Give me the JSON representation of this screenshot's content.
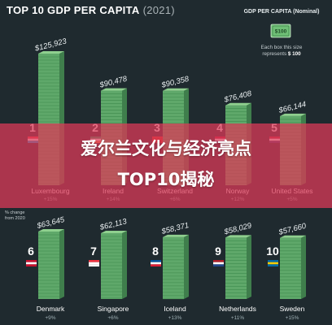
{
  "page": {
    "title_main": "TOP 10 GDP PER CAPITA",
    "title_year": "(2021)",
    "legend": {
      "title": "GDP PER CAPITA (Nominal)",
      "bill_label": "$100",
      "note_line1": "Each box this size",
      "note_line2_prefix": "represents",
      "note_line2_value": "$ 100"
    },
    "change_note": "% change\nfrom 2020",
    "banner_line1": "爱尔兰文化与经济亮点",
    "banner_line2": "TOP10揭秘",
    "colors": {
      "background": "#1f2a2f",
      "money_green": "#5fa86a",
      "money_light": "#8fd08f",
      "banner": "#dc3a58"
    },
    "icons": [
      "money-stack-icon",
      "flag-icon",
      "dollar-bill-icon"
    ]
  },
  "chart_data": {
    "type": "bar",
    "title": "TOP 10 GDP PER CAPITA (2021)",
    "ylabel": "GDP PER CAPITA (Nominal)",
    "units": "USD",
    "items": [
      {
        "rank": "1",
        "country": "Luxembourg",
        "value": 125923,
        "label": "$125,923",
        "change": "+15%",
        "flag": [
          "#ef3340",
          "#ffffff",
          "#00a3e0"
        ]
      },
      {
        "rank": "2",
        "country": "Ireland",
        "value": 90478,
        "label": "$90,478",
        "change": "+14%",
        "flag": [
          "#169b62",
          "#ffffff",
          "#ff883e"
        ]
      },
      {
        "rank": "3",
        "country": "Switzerland",
        "value": 90358,
        "label": "$90,358",
        "change": "+6%",
        "flag": [
          "#d52b1e",
          "#d52b1e",
          "#d52b1e"
        ]
      },
      {
        "rank": "4",
        "country": "Norway",
        "value": 76408,
        "label": "$76,408",
        "change": "+12%",
        "flag": [
          "#ba0c2f",
          "#ffffff",
          "#00205b"
        ]
      },
      {
        "rank": "5",
        "country": "United States",
        "value": 66144,
        "label": "$66,144",
        "change": "+5%",
        "flag": [
          "#b22234",
          "#ffffff",
          "#3c3b6e"
        ]
      },
      {
        "rank": "6",
        "country": "Denmark",
        "value": 63645,
        "label": "$63,645",
        "change": "+9%",
        "flag": [
          "#c8102e",
          "#ffffff",
          "#c8102e"
        ]
      },
      {
        "rank": "7",
        "country": "Singapore",
        "value": 62113,
        "label": "$62,113",
        "change": "+6%",
        "flag": [
          "#ef3340",
          "#ffffff",
          "#ffffff"
        ]
      },
      {
        "rank": "8",
        "country": "Iceland",
        "value": 58371,
        "label": "$58,371",
        "change": "+13%",
        "flag": [
          "#02529c",
          "#ffffff",
          "#dc1e35"
        ]
      },
      {
        "rank": "9",
        "country": "Netherlands",
        "value": 58029,
        "label": "$58,029",
        "change": "+11%",
        "flag": [
          "#ae1c28",
          "#ffffff",
          "#21468b"
        ]
      },
      {
        "rank": "10",
        "country": "Sweden",
        "value": 57660,
        "label": "$57,660",
        "change": "+15%",
        "flag": [
          "#006aa7",
          "#fecc02",
          "#006aa7"
        ]
      }
    ]
  }
}
